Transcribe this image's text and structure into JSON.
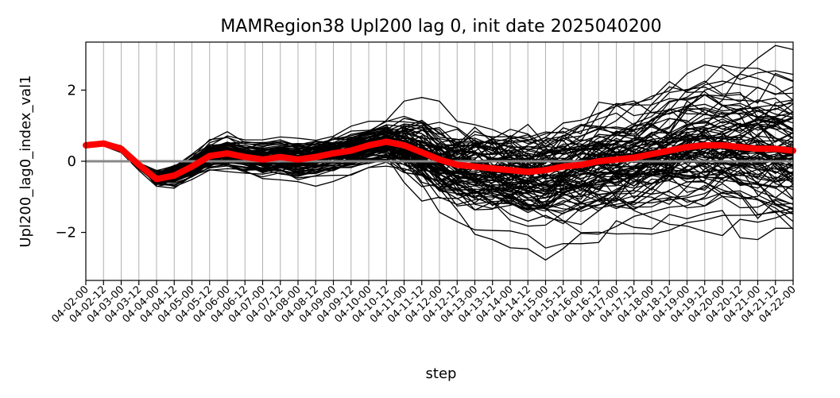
{
  "chart_data": {
    "type": "line",
    "title": "MAMRegion38 Upl200 lag 0, init date 2025040200",
    "xlabel": "step",
    "ylabel": "Upl200_lag0_index_val1",
    "ylim": [
      -3.35,
      3.35
    ],
    "yticks": [
      -2,
      0,
      2
    ],
    "ytick_labels": [
      "−2",
      "0",
      "2"
    ],
    "grid": "vertical",
    "categories": [
      "04-02-00",
      "04-02-12",
      "04-03-00",
      "04-03-12",
      "04-04-00",
      "04-04-12",
      "04-05-00",
      "04-05-12",
      "04-06-00",
      "04-06-12",
      "04-07-00",
      "04-07-12",
      "04-08-00",
      "04-08-12",
      "04-09-00",
      "04-09-12",
      "04-10-00",
      "04-10-12",
      "04-11-00",
      "04-11-12",
      "04-12-00",
      "04-12-12",
      "04-13-00",
      "04-13-12",
      "04-14-00",
      "04-14-12",
      "04-15-00",
      "04-15-12",
      "04-16-00",
      "04-16-12",
      "04-17-00",
      "04-17-12",
      "04-18-00",
      "04-18-12",
      "04-19-00",
      "04-19-12",
      "04-20-00",
      "04-20-12",
      "04-21-00",
      "04-21-12",
      "04-22-00"
    ],
    "reference_line": {
      "y": 0,
      "color": "#888888"
    },
    "ensemble": {
      "members": 100,
      "color": "#000000"
    },
    "mean_series": {
      "color": "#ff0000",
      "values": [
        0.45,
        0.5,
        0.35,
        -0.1,
        -0.5,
        -0.4,
        -0.15,
        0.15,
        0.22,
        0.12,
        0.05,
        0.12,
        0.05,
        0.12,
        0.22,
        0.3,
        0.45,
        0.55,
        0.45,
        0.25,
        0.05,
        -0.1,
        -0.15,
        -0.2,
        -0.25,
        -0.3,
        -0.25,
        -0.15,
        -0.1,
        0.0,
        0.05,
        0.1,
        0.2,
        0.3,
        0.4,
        0.45,
        0.45,
        0.4,
        0.35,
        0.35,
        0.3
      ]
    }
  }
}
